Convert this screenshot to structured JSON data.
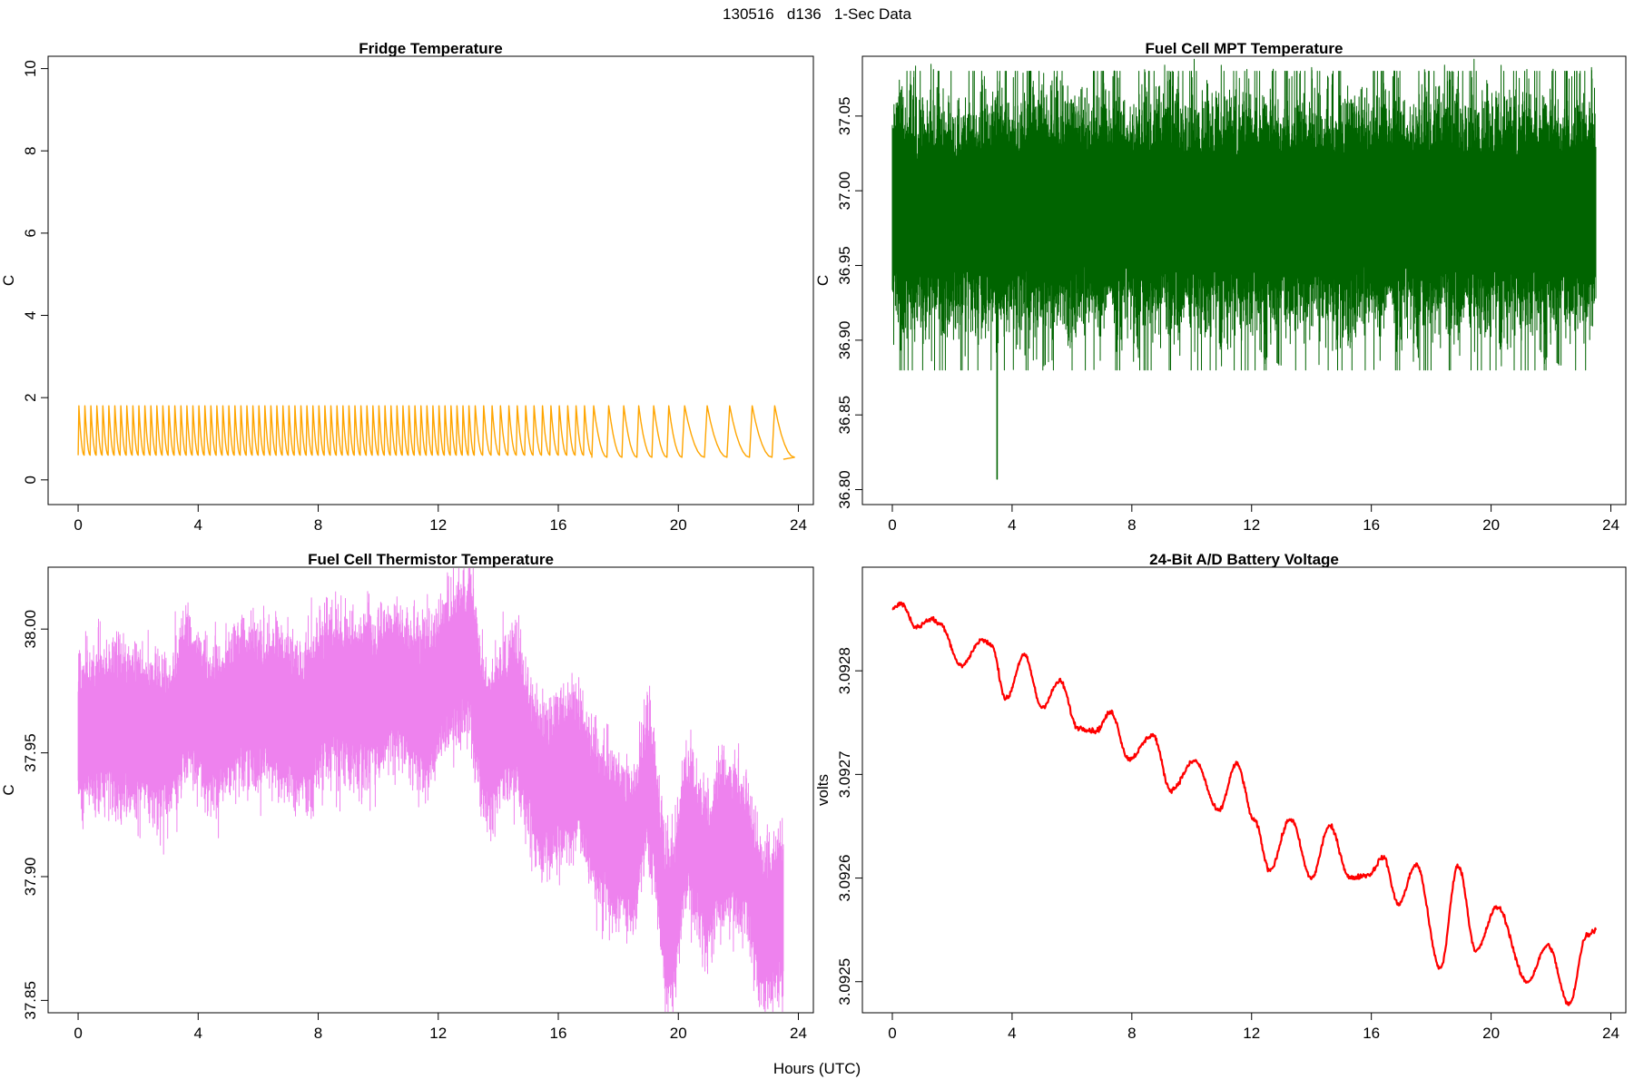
{
  "figure": {
    "title": "130516   d136   1-Sec Data",
    "xlabel": "Hours (UTC)"
  },
  "chart_data": [
    {
      "type": "line",
      "title": "Fridge Temperature",
      "xlabel": "",
      "ylabel": "C",
      "xlim": [
        -1,
        24.5
      ],
      "ylim": [
        -0.6,
        10.3
      ],
      "xticks": [
        0,
        4,
        8,
        12,
        16,
        20,
        24
      ],
      "yticks": [
        0,
        2,
        4,
        6,
        8,
        10
      ],
      "ytick_labels": [
        "0",
        "2",
        "4",
        "6",
        "8",
        "10"
      ],
      "grid": false,
      "color": "#FFA500",
      "series": [
        {
          "pattern": "sawtooth",
          "x_range": [
            0.0,
            23.5
          ],
          "period_segments": [
            {
              "from": 0.0,
              "to": 13.0,
              "period": 0.2
            },
            {
              "from": 13.0,
              "to": 17.0,
              "period": 0.28
            },
            {
              "from": 17.0,
              "to": 20.0,
              "period": 0.5
            },
            {
              "from": 20.0,
              "to": 23.5,
              "period": 0.75
            }
          ],
          "min": 0.6,
          "max": 1.8,
          "final_min": 0.5
        }
      ]
    },
    {
      "type": "line",
      "title": "Fuel Cell MPT Temperature",
      "xlabel": "",
      "ylabel": "C",
      "xlim": [
        -1,
        24.5
      ],
      "ylim": [
        36.79,
        37.09
      ],
      "xticks": [
        0,
        4,
        8,
        12,
        16,
        20,
        24
      ],
      "yticks": [
        36.8,
        36.85,
        36.9,
        36.95,
        37.0,
        37.05
      ],
      "ytick_labels": [
        "36.80",
        "36.85",
        "36.90",
        "36.95",
        "37.00",
        "37.05"
      ],
      "grid": false,
      "color": "#006400",
      "series": [
        {
          "pattern": "noise band",
          "x_range": [
            0.0,
            23.5
          ],
          "band_center": 36.985,
          "dense_band": [
            36.94,
            37.03
          ],
          "spike_range": [
            36.88,
            37.08
          ],
          "min_spike": {
            "x": 3.5,
            "y": 36.807
          }
        }
      ]
    },
    {
      "type": "line",
      "title": "Fuel Cell Thermistor Temperature",
      "xlabel": "",
      "ylabel": "C",
      "xlim": [
        -1,
        24.5
      ],
      "ylim": [
        37.845,
        38.025
      ],
      "xticks": [
        0,
        4,
        8,
        12,
        16,
        20,
        24
      ],
      "yticks": [
        37.85,
        37.9,
        37.95,
        38.0
      ],
      "ytick_labels": [
        "37.85",
        "37.90",
        "37.95",
        "38.00"
      ],
      "grid": false,
      "color": "#EE82EE",
      "series": [
        {
          "pattern": "noise band",
          "center_x": [
            0,
            1,
            2,
            3,
            3.6,
            4.5,
            5.5,
            6.5,
            7.5,
            8.5,
            9.5,
            10.5,
            11.5,
            12.5,
            13.0,
            13.6,
            14.5,
            15.5,
            16.5,
            17.5,
            18.5,
            19.0,
            19.7,
            20.3,
            21.0,
            21.5,
            22.2,
            22.8,
            23.5
          ],
          "center_y": [
            37.957,
            37.962,
            37.958,
            37.955,
            37.972,
            37.96,
            37.97,
            37.968,
            37.962,
            37.975,
            37.97,
            37.978,
            37.97,
            37.985,
            37.99,
            37.955,
            37.965,
            37.935,
            37.945,
            37.92,
            37.91,
            37.938,
            37.88,
            37.92,
            37.9,
            37.915,
            37.91,
            37.88,
            37.885
          ],
          "half_width": 0.02
        }
      ]
    },
    {
      "type": "line",
      "title": "24-Bit A/D Battery Voltage",
      "xlabel": "",
      "ylabel": "volts",
      "xlim": [
        -1,
        24.5
      ],
      "ylim": [
        3.09247,
        3.0929
      ],
      "xticks": [
        0,
        4,
        8,
        12,
        16,
        20,
        24
      ],
      "yticks": [
        3.0925,
        3.0926,
        3.0927,
        3.0928
      ],
      "ytick_labels": [
        "3.0925",
        "3.0926",
        "3.0927",
        "3.0928"
      ],
      "grid": false,
      "color": "#FF0000",
      "series": [
        {
          "x": [
            0.0,
            0.3,
            0.8,
            1.3,
            1.6,
            2.3,
            3.0,
            3.3,
            3.8,
            4.4,
            5.0,
            5.6,
            6.2,
            6.8,
            7.3,
            7.9,
            8.7,
            9.3,
            10.1,
            10.9,
            11.5,
            12.1,
            12.6,
            13.3,
            14.0,
            14.6,
            15.3,
            15.9,
            16.4,
            16.9,
            17.5,
            18.3,
            18.9,
            19.5,
            20.2,
            21.2,
            21.9,
            22.6,
            23.2,
            23.5
          ],
          "y": [
            3.09286,
            3.092865,
            3.092842,
            3.09285,
            3.092845,
            3.092805,
            3.09283,
            3.092825,
            3.092773,
            3.092815,
            3.092765,
            3.09279,
            3.092745,
            3.092742,
            3.09276,
            3.092715,
            3.092738,
            3.092685,
            3.092713,
            3.092665,
            3.09271,
            3.092655,
            3.092608,
            3.092657,
            3.0926,
            3.09265,
            3.0926,
            3.092603,
            3.09262,
            3.092575,
            3.092613,
            3.092513,
            3.092612,
            3.09253,
            3.092572,
            3.0925,
            3.092535,
            3.092478,
            3.092545,
            3.09255
          ]
        }
      ]
    }
  ]
}
